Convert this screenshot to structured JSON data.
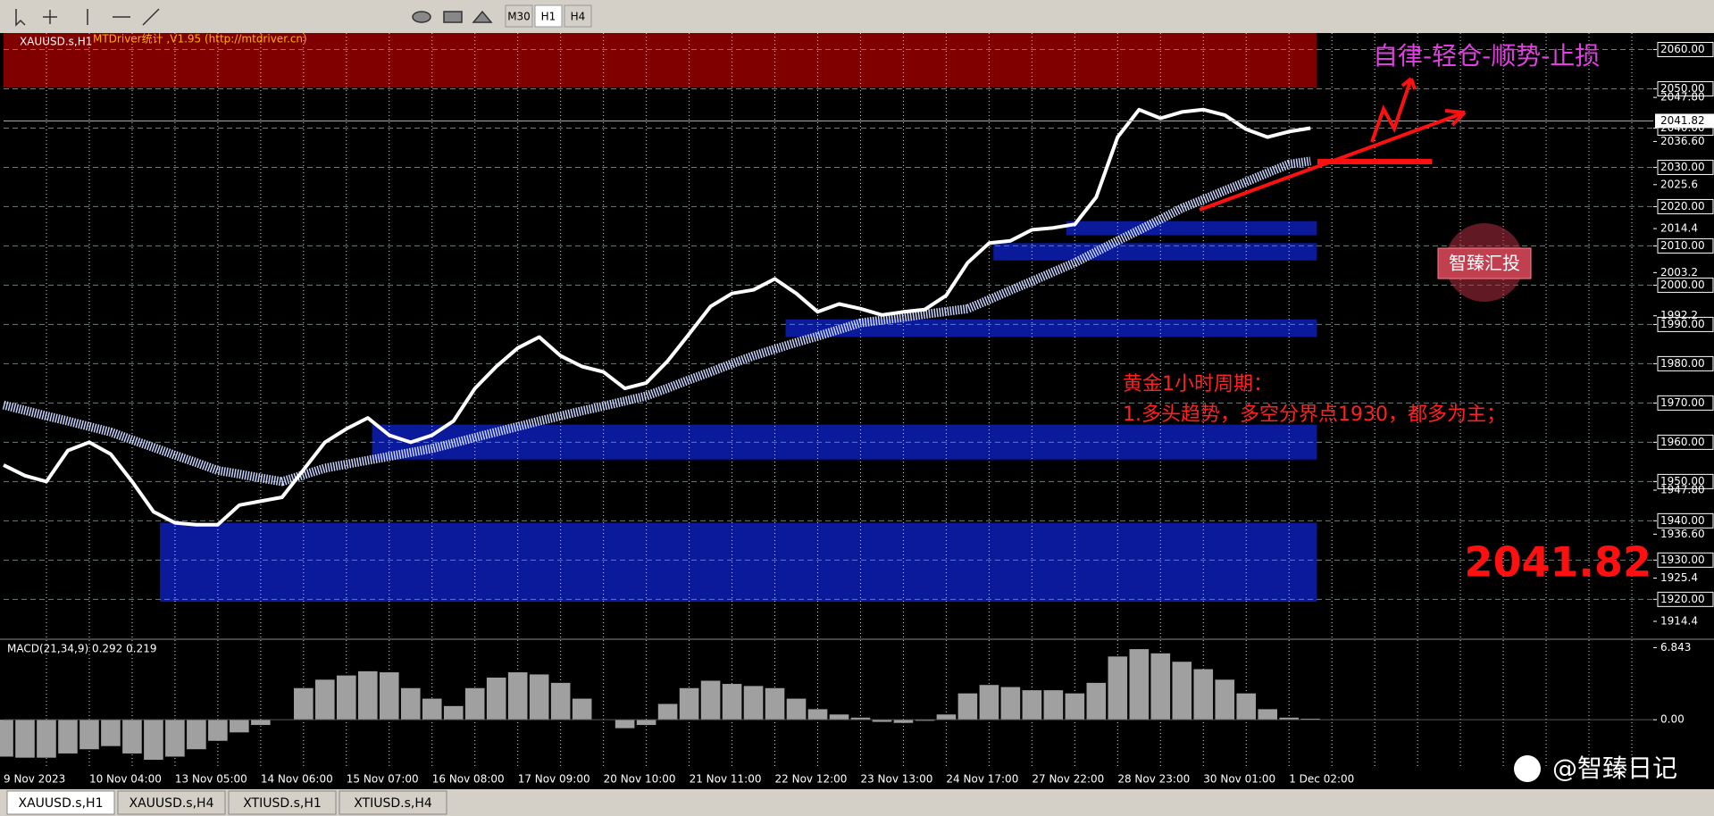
{
  "window": {
    "toolbar": [
      "M30",
      "H1",
      "H4"
    ],
    "tabs": [
      "XAUUSD.s,H1",
      "XAUUSD.s,H4",
      "XTIUSD.s,H1",
      "XTIUSD.s,H4"
    ]
  },
  "chart_data": [
    {
      "type": "line",
      "title": "XAUUSD.s,H1",
      "subtitle": "MTDriver统计 ,V1.95 (http://mtdriver.cn)",
      "categories": [
        "9 Nov 2023",
        null,
        null,
        null,
        "10 Nov 04:00",
        null,
        null,
        null,
        "13 Nov 05:00",
        null,
        null,
        null,
        "14 Nov 06:00",
        null,
        null,
        null,
        "15 Nov 07:00",
        null,
        null,
        null,
        "16 Nov 08:00",
        null,
        null,
        null,
        "17 Nov 09:00",
        null,
        null,
        null,
        "20 Nov 10:00",
        null,
        null,
        null,
        "21 Nov 11:00",
        null,
        null,
        null,
        "22 Nov 12:00",
        null,
        null,
        null,
        "23 Nov 13:00",
        null,
        null,
        null,
        "24 Nov 17:00",
        null,
        null,
        null,
        "27 Nov 22:00",
        null,
        null,
        null,
        "28 Nov 23:00",
        null,
        null,
        null,
        "30 Nov 01:00",
        null,
        null,
        null,
        "1 Dec 02:00",
        null,
        null,
        null,
        null
      ],
      "series": [
        {
          "color": "#c8d4ff",
          "values": [
            1969.5,
            1968.1,
            1966.7,
            1965.4,
            1964,
            1962.6,
            1960.6,
            1958.7,
            1956.7,
            1954.8,
            1952.8,
            1951.9,
            1950.9,
            1950,
            1951.7,
            1953.4,
            1954.4,
            1955.4,
            1956.4,
            1957.4,
            1958.4,
            1959.8,
            1961.2,
            1962.6,
            1964,
            1965.4,
            1966.7,
            1968,
            1969.2,
            1970.5,
            1971.8,
            1973.8,
            1975.9,
            1977.9,
            1980,
            1982,
            1983.7,
            1985.4,
            1987,
            1988.7,
            1990.4,
            1991.1,
            1991.8,
            1992.6,
            1993.3,
            1994,
            1996.3,
            1998.7,
            2001,
            2003.4,
            2005.7,
            2008.5,
            2011.3,
            2014,
            2016.8,
            2019.6,
            2021.8,
            2024.1,
            2026.3,
            2028.6,
            2030.8,
            2031.6,
            null,
            null,
            null
          ]
        },
        {
          "color": "#ffffff",
          "values": [
            1954.2,
            1951.5,
            1950,
            1957.9,
            1960,
            1957,
            1950,
            1942.3,
            1939.5,
            1939,
            1939,
            1944,
            1945,
            1946,
            1953,
            1960,
            1963.4,
            1966.2,
            1961.8,
            1960,
            1961.8,
            1965.4,
            1973.7,
            1979.3,
            1984,
            1986.8,
            1982,
            1979.3,
            1977.9,
            1973.7,
            1975.1,
            1980.7,
            1987.6,
            1994.6,
            1997.9,
            1998.8,
            2001.6,
            1997.9,
            1993.2,
            1995.2,
            1994,
            1992.4,
            1993.2,
            1993.8,
            1997.4,
            2005.7,
            2010.7,
            2011.3,
            2014.1,
            2014.6,
            2015.5,
            2022.4,
            2037.7,
            2044.7,
            2042.5,
            2044.1,
            2044.7,
            2043.3,
            2039.7,
            2037.7,
            2039.1,
            2040,
            null,
            null,
            null
          ]
        }
      ],
      "ylim": [
        1910.3,
        2064.2
      ],
      "yticks": [
        {
          "value": 2060,
          "label": "2060.00"
        },
        {
          "value": 2050,
          "label": "2050.00"
        },
        {
          "value": 2047.8,
          "label": "2047.80"
        },
        {
          "value": 2040,
          "label": "2040.00"
        },
        {
          "value": 2036.6,
          "label": "2036.60"
        },
        {
          "value": 2030,
          "label": "2030.00"
        },
        2025.6,
        {
          "value": 2020,
          "label": "2020.00"
        },
        2014.4,
        {
          "value": 2010,
          "label": "2010.00"
        },
        2003.2,
        {
          "value": 2000,
          "label": "2000.00"
        },
        1992.2,
        {
          "value": 1990,
          "label": "1990.00"
        },
        {
          "value": 1980,
          "label": "1980.00"
        },
        {
          "value": 1970,
          "label": "1970.00"
        },
        {
          "value": 1960,
          "label": "1960.00"
        },
        {
          "value": 1950,
          "label": "1950.00"
        },
        {
          "value": 1947.8,
          "label": "1947.80"
        },
        {
          "value": 1940,
          "label": "1940.00"
        },
        {
          "value": 1936.6,
          "label": "1936.60"
        },
        {
          "value": 1930,
          "label": "1930.00"
        },
        1925.4,
        {
          "value": 1920,
          "label": "1920.00"
        },
        1914.4
      ],
      "grid": true,
      "zones": [
        {
          "low": 2050.3,
          "high": 2064.2,
          "color": "#800000"
        },
        {
          "low": 1919.4,
          "high": 1939.5,
          "color": "#0a1a9a"
        },
        {
          "low": 1955.6,
          "high": 1964.5,
          "color": "#0a1a9a"
        },
        {
          "low": 1986.8,
          "high": 1991.3,
          "color": "#0a1a9a"
        },
        {
          "low": 2006.3,
          "high": 2010.7,
          "color": "#0a1a9a"
        },
        {
          "low": 2012.7,
          "high": 2016.3,
          "color": "#0a1a9a"
        }
      ],
      "current_price": 2041.82,
      "annotations": [
        "自律-轻仓-顺势-止损",
        "黄金1小时周期：",
        "1.多头趋势，多空分界点1930，都多为主；"
      ]
    },
    {
      "type": "bar",
      "title": "MACD(21,34,9) 0.292 0.219",
      "color": "#a0a0a0",
      "values": [
        -3.5,
        -3.6,
        -3.6,
        -3.2,
        -2.8,
        -2.5,
        -3.2,
        -3.8,
        -3.5,
        -2.8,
        -2,
        -1.2,
        -0.5,
        0,
        3,
        3.8,
        4.2,
        4.6,
        4.5,
        3,
        2,
        1.3,
        3,
        4,
        4.5,
        4.3,
        3.5,
        2,
        0,
        -0.8,
        -0.5,
        1.5,
        3,
        3.7,
        3.4,
        3.2,
        3,
        2,
        1,
        0.5,
        0.2,
        -0.2,
        -0.3,
        -0.1,
        0.5,
        2.5,
        3.3,
        3.1,
        2.8,
        2.8,
        2.5,
        3.5,
        6,
        6.7,
        6.3,
        5.5,
        4.8,
        3.8,
        2.5,
        1,
        0.2,
        0.1,
        null,
        null,
        null
      ],
      "ylim": [
        -4.56,
        7.47
      ],
      "yticks": [
        6.843,
        {
          "value": 0,
          "label": "0.00"
        }
      ]
    }
  ],
  "overlay": {
    "stamp": "智臻汇投",
    "footer": "@智臻日记"
  }
}
